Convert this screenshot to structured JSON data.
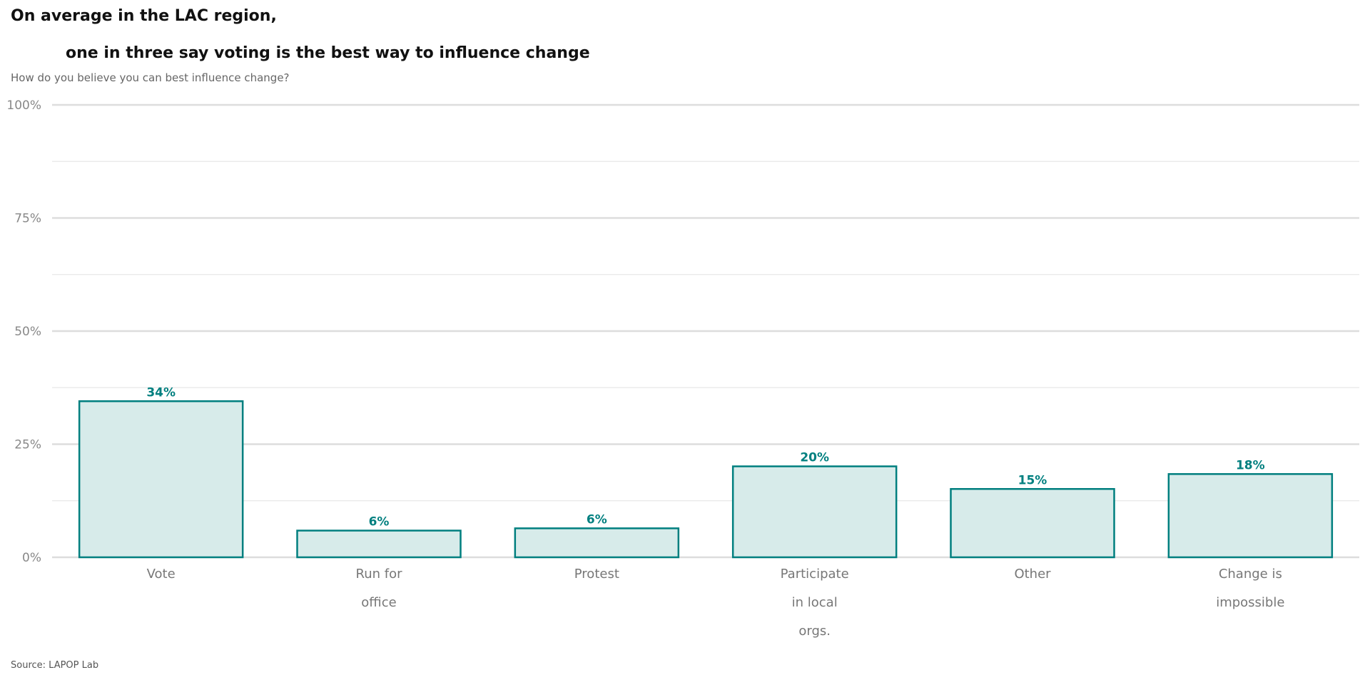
{
  "colors": {
    "accent": "#007f7f",
    "bar_fill": "#d7ebea",
    "grid_major": "#dddddd",
    "grid_minor": "#e8e8e8"
  },
  "chart_data": {
    "type": "bar",
    "title_lines": [
      "On average in the LAC region,",
      "one in three say voting is the best way to influence change"
    ],
    "subtitle": "How do you believe you can best influence change?",
    "source": "Source: LAPOP Lab",
    "categories": [
      [
        "Vote"
      ],
      [
        "Run for",
        "office"
      ],
      [
        "Protest"
      ],
      [
        "Participate",
        "in local",
        "orgs."
      ],
      [
        "Other"
      ],
      [
        "Change is",
        "impossible"
      ]
    ],
    "values": [
      34.5,
      5.9,
      6.4,
      20.1,
      15.1,
      18.4
    ],
    "data_labels": [
      "34%",
      "6%",
      "6%",
      "20%",
      "15%",
      "18%"
    ],
    "ylim": [
      0,
      100
    ],
    "yticks": [
      0,
      25,
      50,
      75,
      100
    ],
    "ytick_labels": [
      "0%",
      "25%",
      "50%",
      "75%",
      "100%"
    ],
    "grid": true,
    "legend": "none"
  }
}
